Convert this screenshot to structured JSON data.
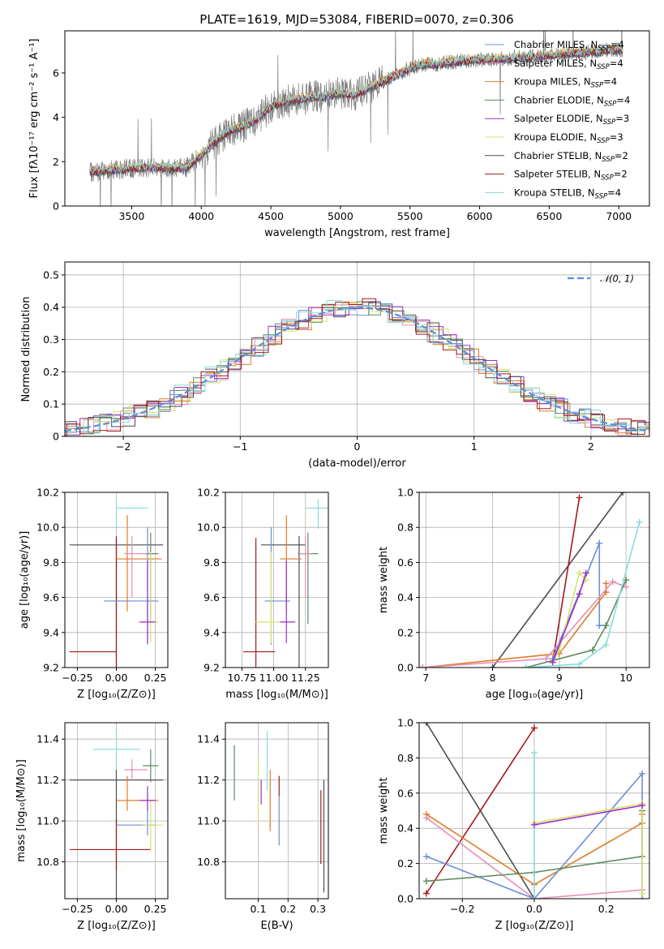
{
  "chart_data": [
    {
      "id": "spectrum",
      "type": "line",
      "title": "PLATE=1619, MJD=53084, FIBERID=0070, z=0.306",
      "xlabel": "wavelength [Angstrom, rest frame]",
      "ylabel": "Flux [fλ10⁻¹⁷ erg cm⁻² s⁻¹ A⁻¹]",
      "xlim": [
        3020,
        7220
      ],
      "ylim": [
        0,
        7.9
      ],
      "xticks": [
        3500,
        4000,
        4500,
        5000,
        5500,
        6000,
        6500,
        7000
      ],
      "yticks": [
        0,
        2,
        4,
        6
      ],
      "grid": false,
      "legend_position": "top-right",
      "legend": [
        "Chabrier MILES, N_SSP=4",
        "Salpeter MILES, N_SSP=4",
        "Kroupa MILES, N_SSP=4",
        "Chabrier ELODIE, N_SSP=4",
        "Salpeter ELODIE, N_SSP=3",
        "Kroupa ELODIE, N_SSP=3",
        "Chabrier STELIB, N_SSP=2",
        "Salpeter STELIB, N_SSP=2",
        "Kroupa STELIB, N_SSP=4"
      ],
      "continuum": {
        "x": [
          3200,
          3300,
          3400,
          3500,
          3600,
          3700,
          3800,
          3900,
          4000,
          4100,
          4200,
          4300,
          4400,
          4500,
          4600,
          4700,
          4800,
          4900,
          5000,
          5100,
          5200,
          5300,
          5400,
          5500,
          5600,
          5700,
          5800,
          5900,
          6000,
          6100,
          6200,
          6300,
          6400,
          6500,
          6600,
          6700,
          6800,
          6900,
          7000
        ],
        "y": [
          1.5,
          1.6,
          1.65,
          1.7,
          1.75,
          1.75,
          1.7,
          1.75,
          2.3,
          2.9,
          3.4,
          3.6,
          3.9,
          4.5,
          4.7,
          4.8,
          4.9,
          4.95,
          5.1,
          5.0,
          5.3,
          5.6,
          5.9,
          6.2,
          6.4,
          6.4,
          6.5,
          6.55,
          6.6,
          6.6,
          6.65,
          6.7,
          6.75,
          6.8,
          6.85,
          6.9,
          6.95,
          7.0,
          7.05
        ]
      }
    },
    {
      "id": "residuals",
      "type": "line",
      "xlabel": "(data-model)/error",
      "ylabel": "Normed distribution",
      "xlim": [
        -2.5,
        2.5
      ],
      "ylim": [
        0,
        0.54
      ],
      "xticks": [
        -2,
        -1,
        0,
        1,
        2
      ],
      "yticks": [
        0.0,
        0.1,
        0.2,
        0.3,
        0.4,
        0.5
      ],
      "grid": true,
      "legend_position": "top-right",
      "legend": [
        "𝒩(0, 1)"
      ]
    },
    {
      "id": "age-vs-Z",
      "type": "scatter",
      "xlabel": "Z [log₁₀(Z/Z⊙)]",
      "ylabel": "age  [log₁₀(age/yr)]",
      "xlim": [
        -0.33,
        0.33
      ],
      "ylim": [
        9.2,
        10.2
      ],
      "xticks": [
        "-0.25",
        "0.00",
        "0.25"
      ],
      "yticks": [
        "9.2",
        "9.4",
        "9.6",
        "9.8",
        "10.0",
        "10.2"
      ],
      "grid": true,
      "points": [
        {
          "x": 0.0,
          "xerr": [
            0.3,
            0.3
          ],
          "y": 9.9,
          "yerr": [
            0.7,
            0.05
          ],
          "color": "#4d4d4d"
        },
        {
          "x": 0.0,
          "xerr": [
            0.3,
            0.0
          ],
          "y": 9.29,
          "yerr": [
            0.1,
            0.65
          ],
          "color": "#a31a1a"
        },
        {
          "x": 0.0,
          "xerr": [
            0.0,
            0.2
          ],
          "y": 10.11,
          "yerr": [
            0.12,
            0.05
          ],
          "color": "#87dcdc"
        },
        {
          "x": 0.2,
          "xerr": [
            0.28,
            0.07
          ],
          "y": 9.58,
          "yerr": [
            0.25,
            0.42
          ],
          "color": "#6b8ed9"
        },
        {
          "x": 0.07,
          "xerr": [
            0.07,
            0.22
          ],
          "y": 9.82,
          "yerr": [
            0.3,
            0.25
          ],
          "color": "#e07b28"
        },
        {
          "x": 0.22,
          "xerr": [
            0.05,
            0.05
          ],
          "y": 9.85,
          "yerr": [
            0.4,
            0.12
          ],
          "color": "#5f8a5f"
        },
        {
          "x": 0.22,
          "xerr": [
            0.08,
            0.05
          ],
          "y": 9.46,
          "yerr": [
            0.12,
            0.4
          ],
          "color": "#d8e070"
        },
        {
          "x": 0.2,
          "xerr": [
            0.05,
            0.05
          ],
          "y": 9.46,
          "yerr": [
            0.12,
            0.35
          ],
          "color": "#9b30c8"
        },
        {
          "x": 0.1,
          "xerr": [
            0.05,
            0.1
          ],
          "y": 9.85,
          "yerr": [
            0.25,
            0.1
          ],
          "color": "#e58fb6"
        }
      ]
    },
    {
      "id": "age-vs-mass",
      "type": "scatter",
      "xlabel": "mass [log₁₀(M/M⊙)]",
      "xlim": [
        10.62,
        11.43
      ],
      "ylim": [
        9.2,
        10.2
      ],
      "xticks": [
        "10.75",
        "11.00",
        "11.25"
      ],
      "yticks": [
        "9.2",
        "9.4",
        "9.6",
        "9.8",
        "10.0",
        "10.2"
      ],
      "grid": true,
      "points": [
        {
          "x": 11.2,
          "xerr": [
            0.3,
            0.05
          ],
          "y": 9.9,
          "yerr": [
            0.7,
            0.05
          ],
          "color": "#4d4d4d"
        },
        {
          "x": 10.86,
          "xerr": [
            0.1,
            0.15
          ],
          "y": 9.29,
          "yerr": [
            0.1,
            0.65
          ],
          "color": "#a31a1a"
        },
        {
          "x": 11.35,
          "xerr": [
            0.1,
            0.1
          ],
          "y": 10.11,
          "yerr": [
            0.12,
            0.05
          ],
          "color": "#87dcdc"
        },
        {
          "x": 10.98,
          "xerr": [
            0.05,
            0.15
          ],
          "y": 9.58,
          "yerr": [
            0.25,
            0.42
          ],
          "color": "#6b8ed9"
        },
        {
          "x": 11.1,
          "xerr": [
            0.05,
            0.12
          ],
          "y": 9.82,
          "yerr": [
            0.3,
            0.25
          ],
          "color": "#e07b28"
        },
        {
          "x": 11.27,
          "xerr": [
            0.08,
            0.08
          ],
          "y": 9.85,
          "yerr": [
            0.4,
            0.12
          ],
          "color": "#5f8a5f"
        },
        {
          "x": 10.98,
          "xerr": [
            0.13,
            0.12
          ],
          "y": 9.46,
          "yerr": [
            0.12,
            0.4
          ],
          "color": "#d8e070"
        },
        {
          "x": 11.1,
          "xerr": [
            0.05,
            0.07
          ],
          "y": 9.46,
          "yerr": [
            0.12,
            0.35
          ],
          "color": "#9b30c8"
        },
        {
          "x": 11.25,
          "xerr": [
            0.05,
            0.05
          ],
          "y": 9.85,
          "yerr": [
            0.25,
            0.1
          ],
          "color": "#e58fb6"
        }
      ]
    },
    {
      "id": "weight-vs-age",
      "type": "line",
      "xlabel": "age  [log₁₀(age/yr)]",
      "ylabel": "mass weight",
      "xlim": [
        6.9,
        10.35
      ],
      "ylim": [
        0,
        1.0
      ],
      "xticks": [
        "7",
        "8",
        "9",
        "10"
      ],
      "yticks": [
        "0.0",
        "0.2",
        "0.4",
        "0.6",
        "0.8",
        "1.0"
      ],
      "grid": true,
      "series": [
        {
          "color": "#4d4d4d",
          "x": [
            8.0,
            9.95
          ],
          "y": [
            0.0,
            1.0
          ]
        },
        {
          "color": "#a31a1a",
          "x": [
            8.9,
            9.3
          ],
          "y": [
            0.03,
            0.97
          ]
        },
        {
          "color": "#6b8ed9",
          "x": [
            8.9,
            9.6,
            9.6,
            9.7
          ],
          "y": [
            0.05,
            0.71,
            0.24,
            0.24
          ]
        },
        {
          "color": "#e07b28",
          "x": [
            6.95,
            9.0,
            9.7,
            9.7
          ],
          "y": [
            0.0,
            0.08,
            0.43,
            0.48
          ]
        },
        {
          "color": "#e58fb6",
          "x": [
            6.95,
            8.8,
            9.8,
            10.0
          ],
          "y": [
            0.0,
            0.05,
            0.49,
            0.46
          ]
        },
        {
          "color": "#5f8a5f",
          "x": [
            8.5,
            9.5,
            9.7,
            10.0
          ],
          "y": [
            0.0,
            0.1,
            0.24,
            0.5
          ]
        },
        {
          "color": "#d8e070",
          "x": [
            8.9,
            9.0,
            9.3,
            9.4
          ],
          "y": [
            0.03,
            0.1,
            0.54,
            0.5
          ]
        },
        {
          "color": "#9b30c8",
          "x": [
            8.9,
            9.3,
            9.4
          ],
          "y": [
            0.03,
            0.42,
            0.54
          ]
        },
        {
          "color": "#87dcdc",
          "x": [
            8.5,
            9.3,
            9.7,
            10.2
          ],
          "y": [
            0.0,
            0.02,
            0.13,
            0.83
          ]
        }
      ]
    },
    {
      "id": "mass-vs-Z",
      "type": "scatter",
      "xlabel": "Z [log₁₀(Z/Z⊙)]",
      "ylabel": "mass [log₁₀(M/M⊙)]",
      "xlim": [
        -0.33,
        0.33
      ],
      "ylim": [
        10.62,
        11.48
      ],
      "xticks": [
        "-0.25",
        "0.00",
        "0.25"
      ],
      "yticks": [
        "10.8",
        "11.0",
        "11.2",
        "11.4"
      ],
      "grid": true,
      "points": [
        {
          "x": 0.0,
          "xerr": [
            0.3,
            0.3
          ],
          "y": 11.2,
          "yerr": [
            0.6,
            0.05
          ],
          "color": "#4d4d4d"
        },
        {
          "x": 0.0,
          "xerr": [
            0.3,
            0.22
          ],
          "y": 10.86,
          "yerr": [
            0.1,
            0.15
          ],
          "color": "#a31a1a"
        },
        {
          "x": 0.0,
          "xerr": [
            0.15,
            0.15
          ],
          "y": 11.35,
          "yerr": [
            0.1,
            0.1
          ],
          "color": "#87dcdc"
        },
        {
          "x": 0.2,
          "xerr": [
            0.2,
            0.05
          ],
          "y": 10.98,
          "yerr": [
            0.05,
            0.15
          ],
          "color": "#6b8ed9"
        },
        {
          "x": 0.07,
          "xerr": [
            0.07,
            0.2
          ],
          "y": 11.1,
          "yerr": [
            0.05,
            0.12
          ],
          "color": "#e07b28"
        },
        {
          "x": 0.22,
          "xerr": [
            0.05,
            0.05
          ],
          "y": 11.27,
          "yerr": [
            0.08,
            0.08
          ],
          "color": "#5f8a5f"
        },
        {
          "x": 0.22,
          "xerr": [
            0.05,
            0.08
          ],
          "y": 10.98,
          "yerr": [
            0.13,
            0.12
          ],
          "color": "#d8e070"
        },
        {
          "x": 0.2,
          "xerr": [
            0.05,
            0.05
          ],
          "y": 11.1,
          "yerr": [
            0.05,
            0.07
          ],
          "color": "#9b30c8"
        },
        {
          "x": 0.1,
          "xerr": [
            0.05,
            0.1
          ],
          "y": 11.25,
          "yerr": [
            0.05,
            0.05
          ],
          "color": "#e58fb6"
        }
      ]
    },
    {
      "id": "mass-vs-ebv",
      "type": "scatter",
      "xlabel": "E(B-V)",
      "xlim": [
        -0.01,
        0.335
      ],
      "ylim": [
        10.62,
        11.48
      ],
      "xticks": [
        "0.1",
        "0.2",
        "0.3"
      ],
      "yticks": [
        "10.8",
        "11.0",
        "11.2",
        "11.4"
      ],
      "grid": true,
      "points": [
        {
          "x": 0.02,
          "y": 11.2,
          "yerr": [
            0.1,
            0.17
          ],
          "color": "#5f8a5f"
        },
        {
          "x": 0.1,
          "y": 11.05,
          "yerr": [
            0.06,
            0.25
          ],
          "color": "#d8e070"
        },
        {
          "x": 0.11,
          "y": 11.15,
          "yerr": [
            0.07,
            0.05
          ],
          "color": "#9b30c8"
        },
        {
          "x": 0.13,
          "y": 11.3,
          "yerr": [
            0.15,
            0.14
          ],
          "color": "#87dcdc"
        },
        {
          "x": 0.14,
          "y": 11.1,
          "yerr": [
            0.15,
            0.15
          ],
          "color": "#e07b28"
        },
        {
          "x": 0.17,
          "y": 11.17,
          "yerr": [
            0.05,
            0.05
          ],
          "color": "#a31a1a"
        },
        {
          "x": 0.17,
          "y": 11.0,
          "yerr": [
            0.12,
            0.12
          ],
          "color": "#6b8ed9"
        },
        {
          "x": 0.31,
          "y": 10.97,
          "yerr": [
            0.18,
            0.18
          ],
          "color": "#a31a1a"
        },
        {
          "x": 0.32,
          "y": 10.9,
          "yerr": [
            0.25,
            0.3
          ],
          "color": "#4d4d4d"
        }
      ]
    },
    {
      "id": "weight-vs-Z",
      "type": "line",
      "xlabel": "Z [log₁₀(Z/Z⊙)]",
      "ylabel": "mass weight",
      "xlim": [
        -0.32,
        0.32
      ],
      "ylim": [
        0,
        1.0
      ],
      "xticks": [
        "-0.2",
        "0.0",
        "0.2"
      ],
      "yticks": [
        "0.0",
        "0.2",
        "0.4",
        "0.6",
        "0.8",
        "1.0"
      ],
      "grid": true,
      "series": [
        {
          "color": "#4d4d4d",
          "x": [
            -0.3,
            0.0
          ],
          "y": [
            1.0,
            0.0
          ]
        },
        {
          "color": "#a31a1a",
          "x": [
            -0.3,
            0.0
          ],
          "y": [
            0.03,
            0.97
          ]
        },
        {
          "color": "#e07b28",
          "x": [
            -0.3,
            0.0,
            0.3,
            0.3
          ],
          "y": [
            0.48,
            0.08,
            0.43,
            0.48
          ]
        },
        {
          "color": "#e58fb6",
          "x": [
            -0.3,
            0.0,
            0.3
          ],
          "y": [
            0.46,
            0.0,
            0.05
          ]
        },
        {
          "color": "#6b8ed9",
          "x": [
            -0.3,
            0.0,
            0.3,
            0.3
          ],
          "y": [
            0.24,
            0.0,
            0.71,
            0.0
          ]
        },
        {
          "color": "#5f8a5f",
          "x": [
            -0.3,
            0.0,
            0.3,
            0.3
          ],
          "y": [
            0.1,
            0.15,
            0.24,
            0.5
          ]
        },
        {
          "color": "#87dcdc",
          "x": [
            0.0,
            0.0
          ],
          "y": [
            0.0,
            0.83
          ]
        },
        {
          "color": "#d8e070",
          "x": [
            0.0,
            0.3,
            0.3
          ],
          "y": [
            0.43,
            0.54,
            0.03
          ]
        },
        {
          "color": "#9b30c8",
          "x": [
            0.0,
            0.3
          ],
          "y": [
            0.42,
            0.53
          ]
        }
      ]
    }
  ],
  "colors": {
    "data": "#7f7f7f",
    "normal": "#5b8ddc",
    "chabrier_miles": "#6b8ed9",
    "salpeter_miles": "#e58fb6",
    "kroupa_miles": "#e07b28",
    "chabrier_elodie": "#5f8a5f",
    "salpeter_elodie": "#9b30c8",
    "kroupa_elodie": "#d8e070",
    "chabrier_stelib": "#4d4d4d",
    "salpeter_stelib": "#a31a1a",
    "kroupa_stelib": "#87dcdc"
  }
}
